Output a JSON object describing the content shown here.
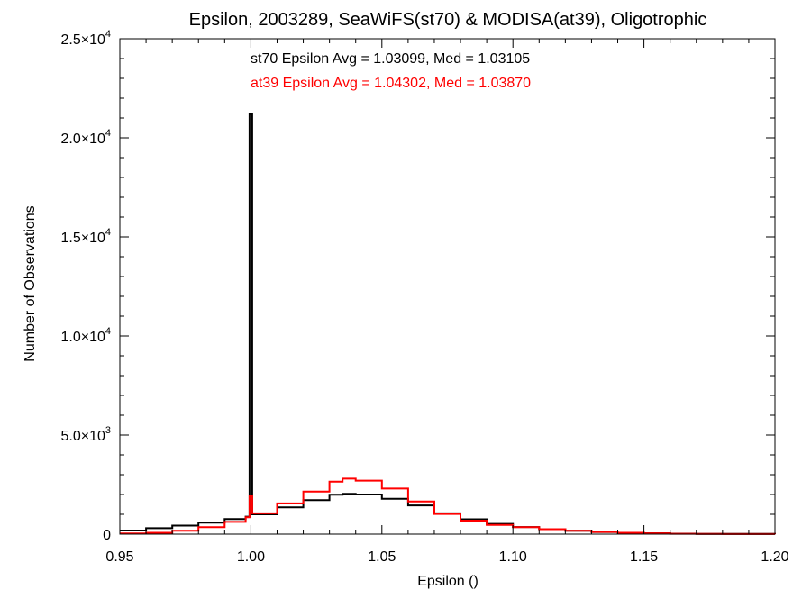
{
  "chart_data": {
    "type": "line",
    "title": "Epsilon, 2003289, SeaWiFS(st70) & MODISA(at39), Oligotrophic",
    "xlabel": "Epsilon ()",
    "ylabel": "Number of Observations",
    "xlim": [
      0.95,
      1.2
    ],
    "ylim": [
      0,
      25000
    ],
    "x_ticks": [
      {
        "value": 0.95,
        "label": "0.95"
      },
      {
        "value": 1.0,
        "label": "1.00"
      },
      {
        "value": 1.05,
        "label": "1.05"
      },
      {
        "value": 1.1,
        "label": "1.10"
      },
      {
        "value": 1.15,
        "label": "1.15"
      },
      {
        "value": 1.2,
        "label": "1.20"
      }
    ],
    "y_ticks": [
      {
        "value": 0,
        "mantissa": "0",
        "exp": ""
      },
      {
        "value": 5000,
        "mantissa": "5.0×10",
        "exp": "3"
      },
      {
        "value": 10000,
        "mantissa": "1.0×10",
        "exp": "4"
      },
      {
        "value": 15000,
        "mantissa": "1.5×10",
        "exp": "4"
      },
      {
        "value": 20000,
        "mantissa": "2.0×10",
        "exp": "4"
      },
      {
        "value": 25000,
        "mantissa": "2.5×10",
        "exp": "4"
      }
    ],
    "annotations": [
      {
        "text": "st70 Epsilon Avg = 1.03099, Med = 1.03105",
        "color": "#000000"
      },
      {
        "text": "at39 Epsilon Avg = 1.04302, Med = 1.03870",
        "color": "#ff0000"
      }
    ],
    "grid": false,
    "series": [
      {
        "color": "#000000",
        "points": [
          [
            0.95,
            180
          ],
          [
            0.96,
            300
          ],
          [
            0.97,
            430
          ],
          [
            0.98,
            580
          ],
          [
            0.99,
            760
          ],
          [
            0.998,
            880
          ],
          [
            0.9995,
            21200
          ],
          [
            1.0005,
            1000
          ],
          [
            1.01,
            1350
          ],
          [
            1.02,
            1720
          ],
          [
            1.03,
            1990
          ],
          [
            1.035,
            2030
          ],
          [
            1.04,
            2000
          ],
          [
            1.05,
            1780
          ],
          [
            1.06,
            1450
          ],
          [
            1.07,
            1050
          ],
          [
            1.08,
            750
          ],
          [
            1.09,
            520
          ],
          [
            1.1,
            360
          ],
          [
            1.11,
            250
          ],
          [
            1.12,
            170
          ],
          [
            1.13,
            110
          ],
          [
            1.14,
            70
          ],
          [
            1.15,
            45
          ],
          [
            1.16,
            25
          ],
          [
            1.17,
            15
          ],
          [
            1.18,
            8
          ],
          [
            1.2,
            0
          ]
        ]
      },
      {
        "color": "#ff0000",
        "points": [
          [
            0.95,
            30
          ],
          [
            0.96,
            70
          ],
          [
            0.97,
            170
          ],
          [
            0.98,
            350
          ],
          [
            0.99,
            620
          ],
          [
            0.998,
            850
          ],
          [
            0.9995,
            1950
          ],
          [
            1.0005,
            1050
          ],
          [
            1.01,
            1550
          ],
          [
            1.02,
            2150
          ],
          [
            1.03,
            2650
          ],
          [
            1.035,
            2800
          ],
          [
            1.04,
            2700
          ],
          [
            1.05,
            2300
          ],
          [
            1.06,
            1650
          ],
          [
            1.07,
            1020
          ],
          [
            1.08,
            680
          ],
          [
            1.09,
            470
          ],
          [
            1.1,
            350
          ],
          [
            1.11,
            250
          ],
          [
            1.12,
            170
          ],
          [
            1.13,
            110
          ],
          [
            1.14,
            70
          ],
          [
            1.15,
            40
          ],
          [
            1.16,
            20
          ],
          [
            1.17,
            10
          ],
          [
            1.18,
            5
          ],
          [
            1.2,
            0
          ]
        ]
      }
    ]
  }
}
